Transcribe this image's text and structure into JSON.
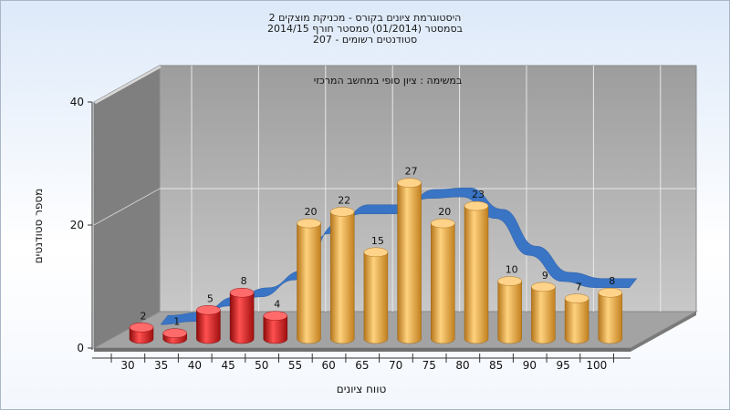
{
  "chart_data": {
    "type": "bar",
    "title_lines": [
      "היסטוגרמת ציונים בקורס - מכניקת מוצקים 2",
      "בסמסטר  (01/2014)  סמסטר חורף  2014/15",
      "סטודנטים רשומים - 207"
    ],
    "subtitle": "במשימה : ציון סופי במחשב המרכזי",
    "xlabel": "טווח ציונים",
    "ylabel": "מספר סטודנטים",
    "ylim": [
      0,
      40
    ],
    "yticks": [
      "0",
      "20",
      "40"
    ],
    "grid": true,
    "categories": [
      "30",
      "35",
      "40",
      "45",
      "50",
      "55",
      "60",
      "65",
      "70",
      "75",
      "80",
      "85",
      "90",
      "95",
      "100"
    ],
    "values": [
      2,
      1,
      5,
      8,
      4,
      20,
      22,
      15,
      27,
      20,
      23,
      10,
      9,
      7,
      8
    ],
    "bar_colors": [
      "red",
      "red",
      "red",
      "red",
      "red",
      "orange",
      "orange",
      "orange",
      "orange",
      "orange",
      "orange",
      "orange",
      "orange",
      "orange",
      "orange"
    ],
    "colors": {
      "fail": "#d81a1a",
      "pass": "#e6a23c",
      "curve": "#3a74c4"
    }
  }
}
